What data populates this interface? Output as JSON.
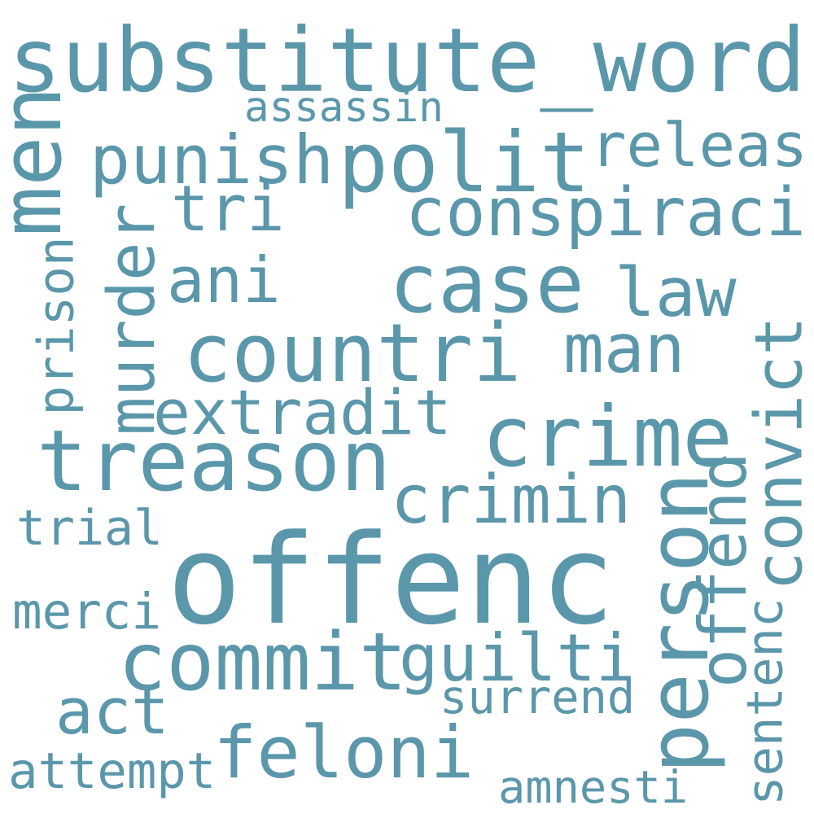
{
  "colors": {
    "background": "#ffffff",
    "word": "#5b97ab"
  },
  "words": [
    {
      "key": "substitute_word",
      "text": "substitute_word"
    },
    {
      "key": "offenc",
      "text": "offenc"
    },
    {
      "key": "polit",
      "text": "polit"
    },
    {
      "key": "treason",
      "text": "treason"
    },
    {
      "key": "countri",
      "text": "countri"
    },
    {
      "key": "case",
      "text": "case"
    },
    {
      "key": "crime",
      "text": "crime"
    },
    {
      "key": "person",
      "text": "person"
    },
    {
      "key": "feloni",
      "text": "feloni"
    },
    {
      "key": "commit",
      "text": "commit"
    },
    {
      "key": "men",
      "text": "men"
    },
    {
      "key": "conspiraci",
      "text": "conspiraci"
    },
    {
      "key": "punish",
      "text": "punish"
    },
    {
      "key": "guilti",
      "text": "guilti"
    },
    {
      "key": "crimin",
      "text": "crimin"
    },
    {
      "key": "convict",
      "text": "convict"
    },
    {
      "key": "murder",
      "text": "murder"
    },
    {
      "key": "releas",
      "text": "releas"
    },
    {
      "key": "offend",
      "text": "offend"
    },
    {
      "key": "law",
      "text": "law"
    },
    {
      "key": "man",
      "text": "man"
    },
    {
      "key": "extradit",
      "text": "extradit"
    },
    {
      "key": "tri",
      "text": "tri"
    },
    {
      "key": "ani",
      "text": "ani"
    },
    {
      "key": "act",
      "text": "act"
    },
    {
      "key": "attempt",
      "text": "attempt"
    },
    {
      "key": "prison",
      "text": "prison"
    },
    {
      "key": "sentenc",
      "text": "sentenc"
    },
    {
      "key": "trial",
      "text": "trial"
    },
    {
      "key": "merci",
      "text": "merci"
    },
    {
      "key": "surrend",
      "text": "surrend"
    },
    {
      "key": "amnesti",
      "text": "amnesti"
    },
    {
      "key": "assassin",
      "text": "assassin"
    }
  ]
}
